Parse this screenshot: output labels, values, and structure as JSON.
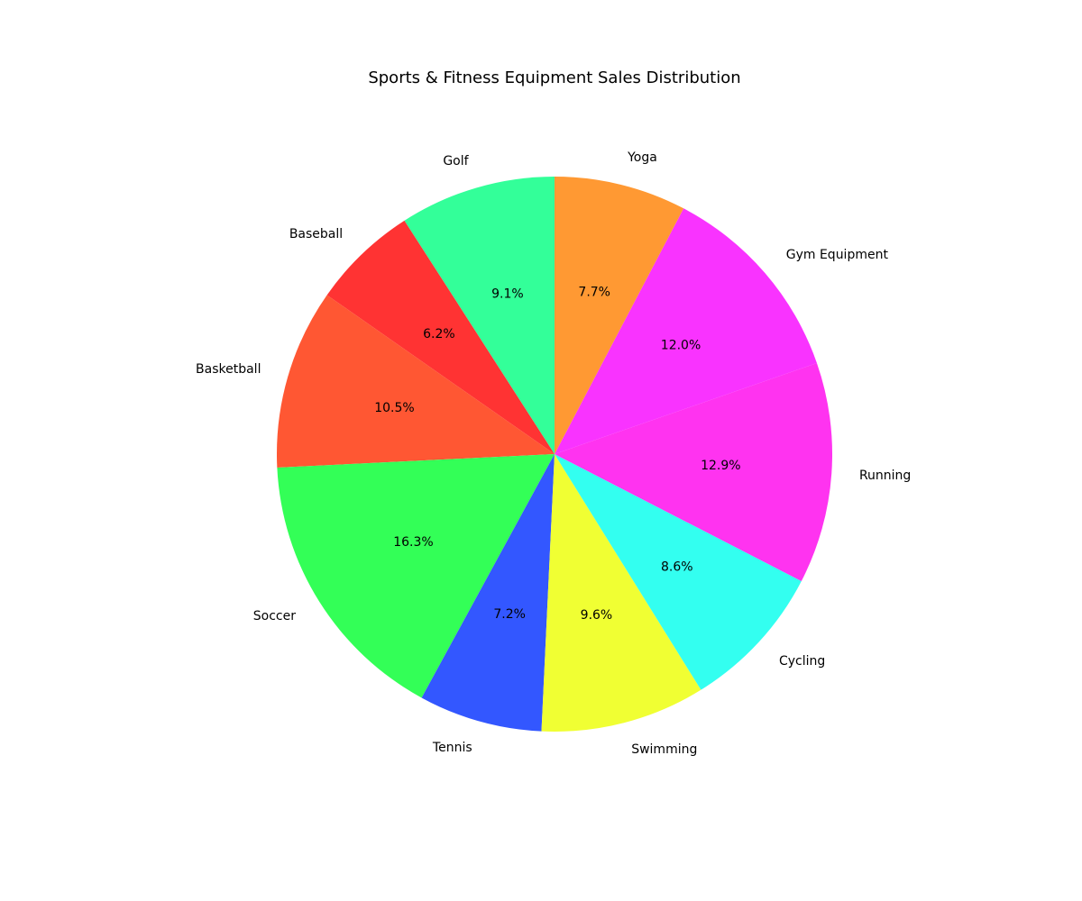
{
  "chart_data": {
    "type": "pie",
    "title": "Sports & Fitness Equipment Sales Distribution",
    "start_angle_deg": 90,
    "direction": "counterclockwise",
    "slices": [
      {
        "label": "Golf",
        "pct": 9.1,
        "pct_label": "9.1%",
        "color": "#33ff99"
      },
      {
        "label": "Baseball",
        "pct": 6.2,
        "pct_label": "6.2%",
        "color": "#ff3333"
      },
      {
        "label": "Basketball",
        "pct": 10.5,
        "pct_label": "10.5%",
        "color": "#ff5733"
      },
      {
        "label": "Soccer",
        "pct": 16.3,
        "pct_label": "16.3%",
        "color": "#33ff57"
      },
      {
        "label": "Tennis",
        "pct": 7.2,
        "pct_label": "7.2%",
        "color": "#3357ff"
      },
      {
        "label": "Swimming",
        "pct": 9.6,
        "pct_label": "9.6%",
        "color": "#f0ff33"
      },
      {
        "label": "Cycling",
        "pct": 8.6,
        "pct_label": "8.6%",
        "color": "#33fff0"
      },
      {
        "label": "Running",
        "pct": 12.9,
        "pct_label": "12.9%",
        "color": "#ff33f0"
      },
      {
        "label": "Gym Equipment",
        "pct": 12.0,
        "pct_label": "12.0%",
        "color": "#f933ff"
      },
      {
        "label": "Yoga",
        "pct": 7.7,
        "pct_label": "7.7%",
        "color": "#ff9933"
      }
    ]
  }
}
